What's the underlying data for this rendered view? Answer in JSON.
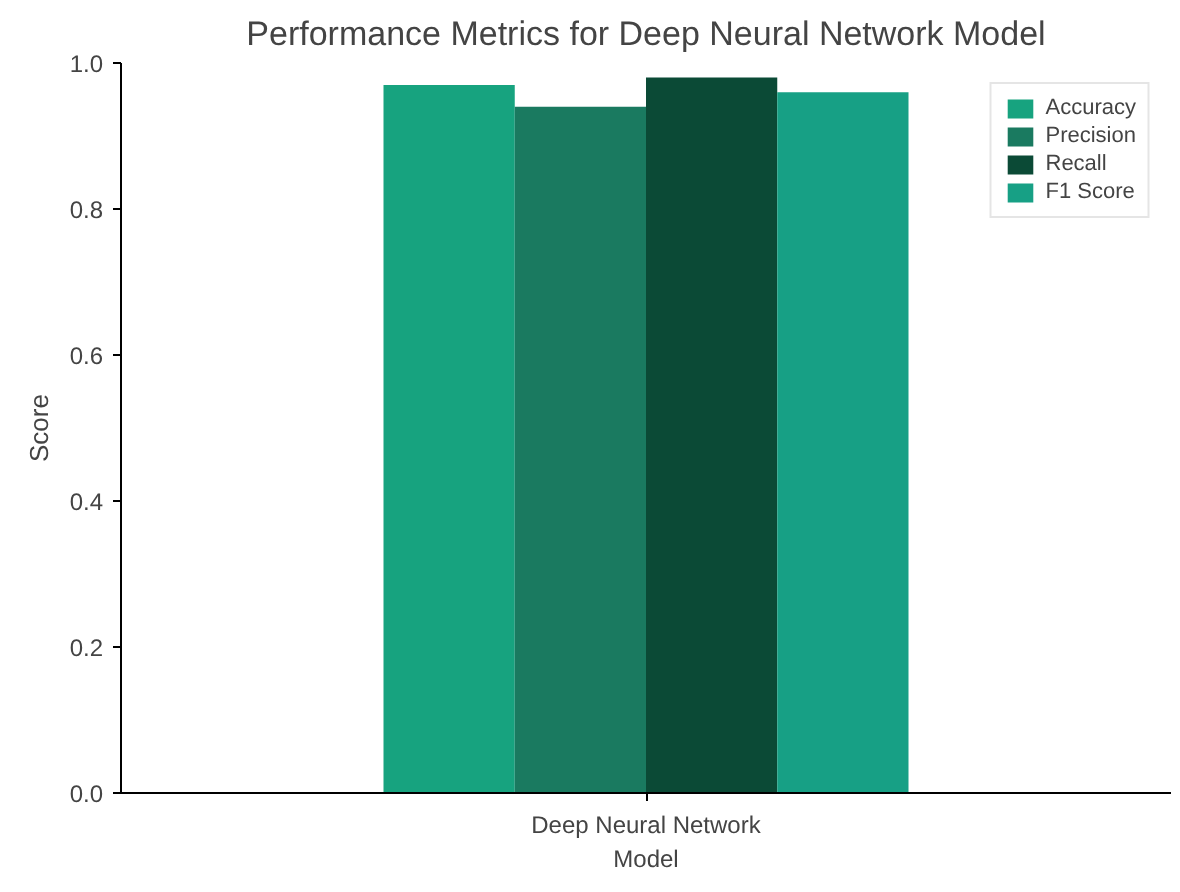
{
  "chart_data": {
    "type": "bar",
    "title": "Performance Metrics for Deep Neural Network Model",
    "ylabel": "Score",
    "categories": [
      "Deep Neural Network Model"
    ],
    "series": [
      {
        "name": "Accuracy",
        "color": "#17a37f",
        "values": [
          0.97
        ]
      },
      {
        "name": "Precision",
        "color": "#1a7a60",
        "values": [
          0.94
        ]
      },
      {
        "name": "Recall",
        "color": "#0b4a36",
        "values": [
          0.98
        ]
      },
      {
        "name": "F1 Score",
        "color": "#17a085",
        "values": [
          0.96
        ]
      }
    ],
    "ylim": [
      0,
      1
    ],
    "yticks": [
      {
        "value": 0,
        "label": "0.0"
      },
      {
        "value": 0.2,
        "label": "0.2"
      },
      {
        "value": 0.4,
        "label": "0.4"
      },
      {
        "value": 0.6,
        "label": "0.6"
      },
      {
        "value": 0.8,
        "label": "0.8"
      },
      {
        "value": 1,
        "label": "1.0"
      }
    ],
    "grid": false,
    "legend": "top right"
  }
}
